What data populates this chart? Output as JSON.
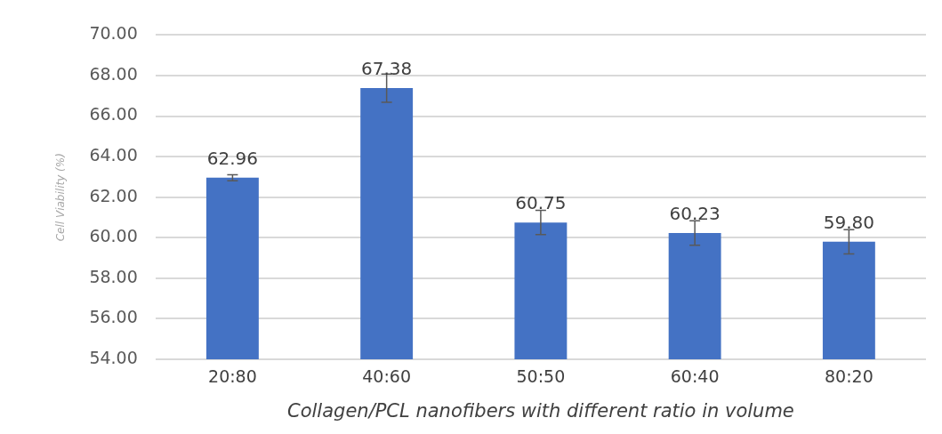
{
  "chart_data": {
    "type": "bar",
    "categories": [
      "20:80",
      "40:60",
      "50:50",
      "60:40",
      "80:20"
    ],
    "values": [
      62.96,
      67.38,
      60.75,
      60.23,
      59.8
    ],
    "value_labels": [
      "62.96",
      "67.38",
      "60.75",
      "60.23",
      "59.80"
    ],
    "errors": [
      0.15,
      0.7,
      0.6,
      0.6,
      0.6
    ],
    "color": "#4472c4",
    "xlabel": "Collagen/PCL nanofibers with different ratio in volume",
    "ylabel": "Cell Viability (%)",
    "ylim": [
      54,
      70
    ],
    "yticks": [
      {
        "value": 54,
        "label": "54.00"
      },
      {
        "value": 56,
        "label": "56.00"
      },
      {
        "value": 58,
        "label": "58.00"
      },
      {
        "value": 60,
        "label": "60.00"
      },
      {
        "value": 62,
        "label": "62.00"
      },
      {
        "value": 64,
        "label": "64.00"
      },
      {
        "value": 66,
        "label": "66.00"
      },
      {
        "value": 68,
        "label": "68.00"
      },
      {
        "value": 70,
        "label": "70.00"
      }
    ],
    "grid": "y"
  }
}
